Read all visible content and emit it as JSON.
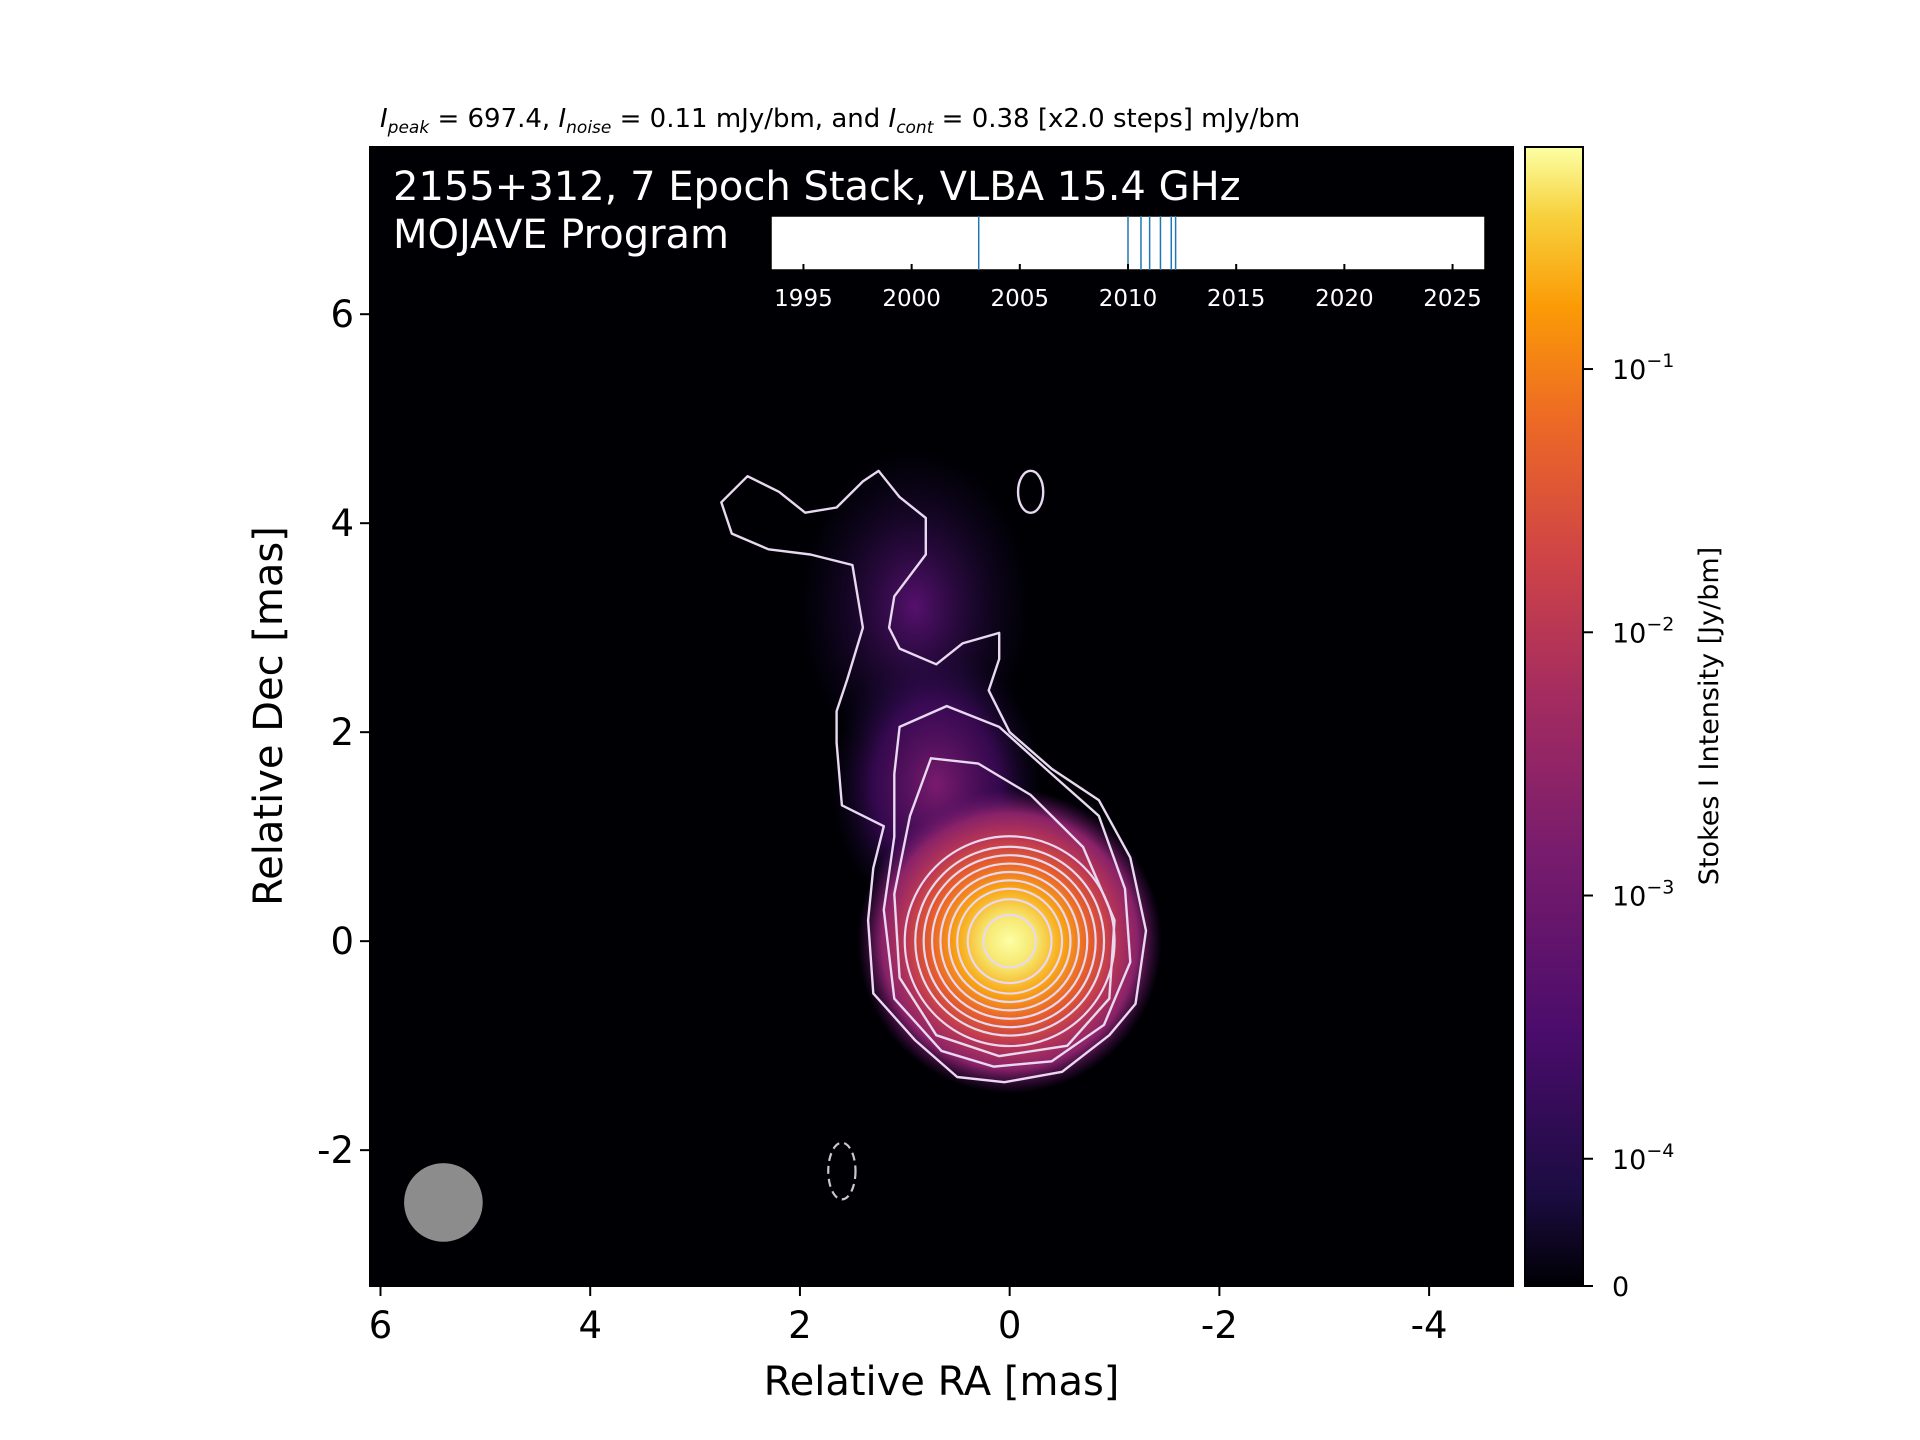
{
  "header": {
    "peak_sym": "I",
    "peak_sub": "peak",
    "peak_text": " = 697.4, ",
    "noise_sym": "I",
    "noise_sub": "noise",
    "noise_text": " = 0.11 mJy/bm, and ",
    "cont_sym": "I",
    "cont_sub": "cont",
    "cont_text": " = 0.38 [x2.0 steps] mJy/bm"
  },
  "overlay": {
    "title_line1": "2155+312, 7 Epoch Stack, VLBA 15.4 GHz",
    "title_line2": "MOJAVE Program"
  },
  "colors": {
    "background": "#000004",
    "contour": "#e8d8f0",
    "neg_contour": "#c8c8c8",
    "beam": "#8c8c8c",
    "epoch_line": "#1f77b4"
  },
  "chart_data": [
    {
      "type": "heatmap",
      "colormap": "inferno",
      "xlabel": "Relative RA [mas]",
      "ylabel": "Relative Dec [mas]",
      "xlim": [
        6.1,
        -4.8
      ],
      "ylim": [
        -3.3,
        7.6
      ],
      "xticks": [
        6,
        4,
        2,
        0,
        -2,
        -4
      ],
      "xtick_labels": [
        "6",
        "4",
        "2",
        "0",
        "-2",
        "-4"
      ],
      "yticks": [
        -2,
        0,
        2,
        4,
        6
      ],
      "ytick_labels": [
        "-2",
        "0",
        "2",
        "4",
        "6"
      ],
      "grid": false,
      "peak_position": [
        0,
        0
      ],
      "contour_levels_mjy": [
        0.38,
        0.76,
        1.52,
        3.04,
        6.08,
        12.16,
        24.32,
        48.64,
        97.28,
        194.56,
        389.12
      ],
      "negative_contour_position": [
        1.6,
        -2.2
      ],
      "beam_position": [
        5.4,
        -2.5
      ],
      "beam_diameter_mas": 0.75
    },
    {
      "type": "colorbar",
      "label": "Stokes I Intensity [Jy/bm]",
      "scale": "log",
      "ticks": [
        0,
        0.0001,
        0.001,
        0.01,
        0.1
      ],
      "tick_labels": [
        "0",
        "10",
        "10",
        "10",
        "10"
      ],
      "tick_exponents": [
        "",
        "−4",
        "−3",
        "−2",
        "−1"
      ],
      "range": [
        0,
        0.6974
      ]
    },
    {
      "type": "timeline",
      "xlim": [
        1993.5,
        2026.5
      ],
      "ticks": [
        1995,
        2000,
        2005,
        2010,
        2015,
        2020,
        2025
      ],
      "tick_labels": [
        "1995",
        "2000",
        "2005",
        "2010",
        "2015",
        "2020",
        "2025"
      ],
      "epochs": [
        2003.1,
        2010.0,
        2010.6,
        2011.0,
        2011.5,
        2012.0,
        2012.2
      ]
    }
  ]
}
